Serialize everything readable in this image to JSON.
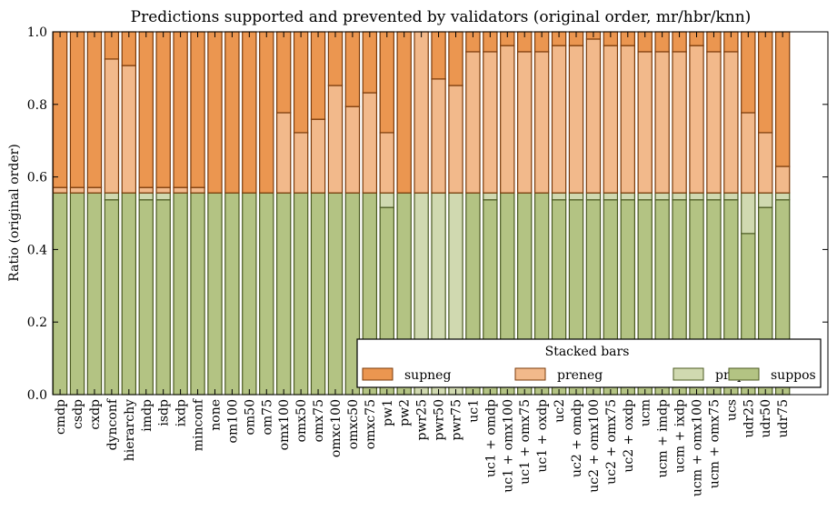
{
  "chart_data": {
    "type": "bar",
    "stacked": true,
    "title": "Predictions supported and prevented by validators (original order, mr/hbr/knn)",
    "xlabel": "",
    "ylabel": "Ratio (original order)",
    "ylim": [
      0.0,
      1.0
    ],
    "yticks": [
      "0.0",
      "0.2",
      "0.4",
      "0.6",
      "0.8",
      "1.0"
    ],
    "ytick_values": [
      0.0,
      0.2,
      0.4,
      0.6,
      0.8,
      1.0
    ],
    "grid": false,
    "legend": {
      "title": "Stacked bars",
      "placement": "lower-right",
      "entries": [
        "supneg",
        "preneg",
        "prepos",
        "suppos"
      ]
    },
    "colors": {
      "supneg": "#eb9650",
      "preneg": "#f2b98b",
      "prepos": "#d0d9b0",
      "suppos": "#b3c383",
      "supneg_edge": "#7a3a0a",
      "preneg_edge": "#7a3a0a",
      "prepos_edge": "#4b5a22",
      "suppos_edge": "#4b5a22"
    },
    "categories": [
      "cmdp",
      "csdp",
      "cxdp",
      "dynconf",
      "hierarchy",
      "imdp",
      "isdp",
      "ixdp",
      "minconf",
      "none",
      "om100",
      "om50",
      "om75",
      "omx100",
      "omx50",
      "omx75",
      "omxc100",
      "omxc50",
      "omxc75",
      "pw1",
      "pw2",
      "pwr25",
      "pwr50",
      "pwr75",
      "uc1",
      "uc1 + omdp",
      "uc1 + omx100",
      "uc1 + omx75",
      "uc1 + oxdp",
      "uc2",
      "uc2 + omdp",
      "uc2 + omx100",
      "uc2 + omx75",
      "uc2 + oxdp",
      "ucm",
      "ucm + imdp",
      "ucm + ixdp",
      "ucm + omx100",
      "ucm + omx75",
      "ucs",
      "udr25",
      "udr50",
      "udr75"
    ],
    "series": [
      {
        "name": "suppos",
        "values": [
          0.556,
          0.556,
          0.556,
          0.537,
          0.556,
          0.537,
          0.537,
          0.556,
          0.556,
          0.556,
          0.556,
          0.556,
          0.556,
          0.556,
          0.556,
          0.556,
          0.556,
          0.556,
          0.556,
          0.516,
          0.556,
          0.0,
          0.0,
          0.0,
          0.556,
          0.537,
          0.556,
          0.556,
          0.556,
          0.537,
          0.537,
          0.537,
          0.537,
          0.537,
          0.537,
          0.537,
          0.537,
          0.537,
          0.537,
          0.537,
          0.444,
          0.516,
          0.537
        ]
      },
      {
        "name": "prepos",
        "values": [
          0.0,
          0.0,
          0.0,
          0.019,
          0.0,
          0.019,
          0.019,
          0.0,
          0.0,
          0.0,
          0.0,
          0.0,
          0.0,
          0.0,
          0.0,
          0.0,
          0.0,
          0.0,
          0.0,
          0.04,
          0.0,
          0.556,
          0.556,
          0.556,
          0.0,
          0.019,
          0.0,
          0.0,
          0.0,
          0.019,
          0.019,
          0.019,
          0.019,
          0.019,
          0.019,
          0.019,
          0.019,
          0.019,
          0.019,
          0.019,
          0.112,
          0.04,
          0.019
        ]
      },
      {
        "name": "preneg",
        "values": [
          0.015,
          0.015,
          0.015,
          0.369,
          0.351,
          0.015,
          0.015,
          0.015,
          0.015,
          0.0,
          0.0,
          0.0,
          0.0,
          0.221,
          0.166,
          0.203,
          0.296,
          0.238,
          0.276,
          0.166,
          0.0,
          0.444,
          0.314,
          0.296,
          0.389,
          0.389,
          0.406,
          0.389,
          0.389,
          0.406,
          0.406,
          0.424,
          0.406,
          0.406,
          0.389,
          0.389,
          0.389,
          0.406,
          0.389,
          0.389,
          0.221,
          0.166,
          0.073
        ]
      },
      {
        "name": "supneg",
        "values": [
          0.429,
          0.429,
          0.429,
          0.075,
          0.093,
          0.429,
          0.429,
          0.429,
          0.429,
          0.444,
          0.444,
          0.444,
          0.444,
          0.223,
          0.278,
          0.241,
          0.148,
          0.206,
          0.168,
          0.278,
          0.444,
          0.0,
          0.13,
          0.148,
          0.055,
          0.055,
          0.038,
          0.055,
          0.055,
          0.038,
          0.038,
          0.02,
          0.038,
          0.038,
          0.055,
          0.055,
          0.055,
          0.038,
          0.055,
          0.055,
          0.223,
          0.278,
          0.371
        ]
      }
    ]
  }
}
